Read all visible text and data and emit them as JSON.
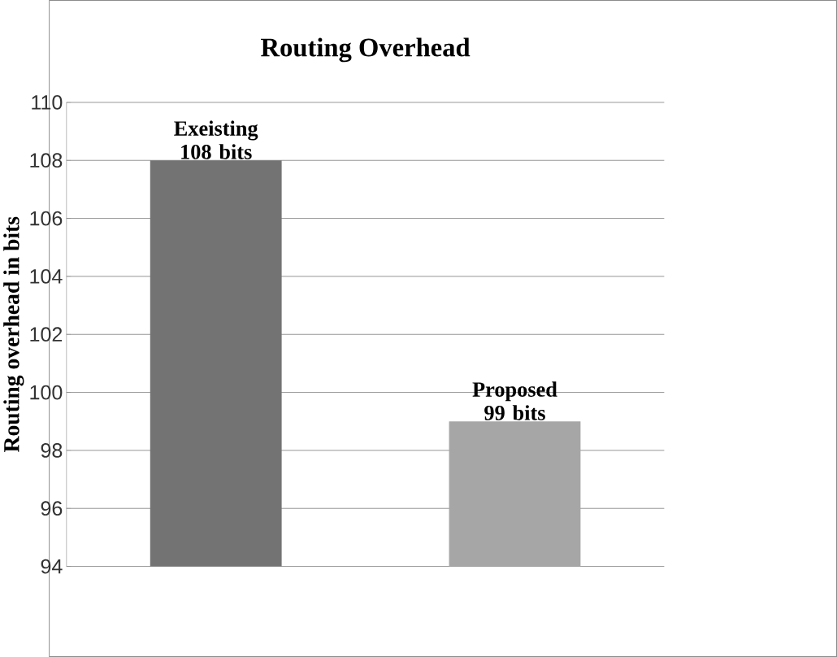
{
  "chart_data": {
    "type": "bar",
    "title": "Routing Overhead",
    "ylabel": "Routing overhead in bits",
    "categories": [
      null,
      null
    ],
    "values": [
      108,
      99
    ],
    "colors": [
      "#737373",
      "#a6a6a6"
    ],
    "value_labels": [
      "Exeisting 108 bits",
      "Proposed 99 bits"
    ],
    "ylim": [
      94,
      110
    ],
    "yticks": [
      94,
      96,
      98,
      100,
      102,
      104,
      106,
      108,
      110
    ],
    "grid": "y",
    "tick_labels": "y"
  }
}
